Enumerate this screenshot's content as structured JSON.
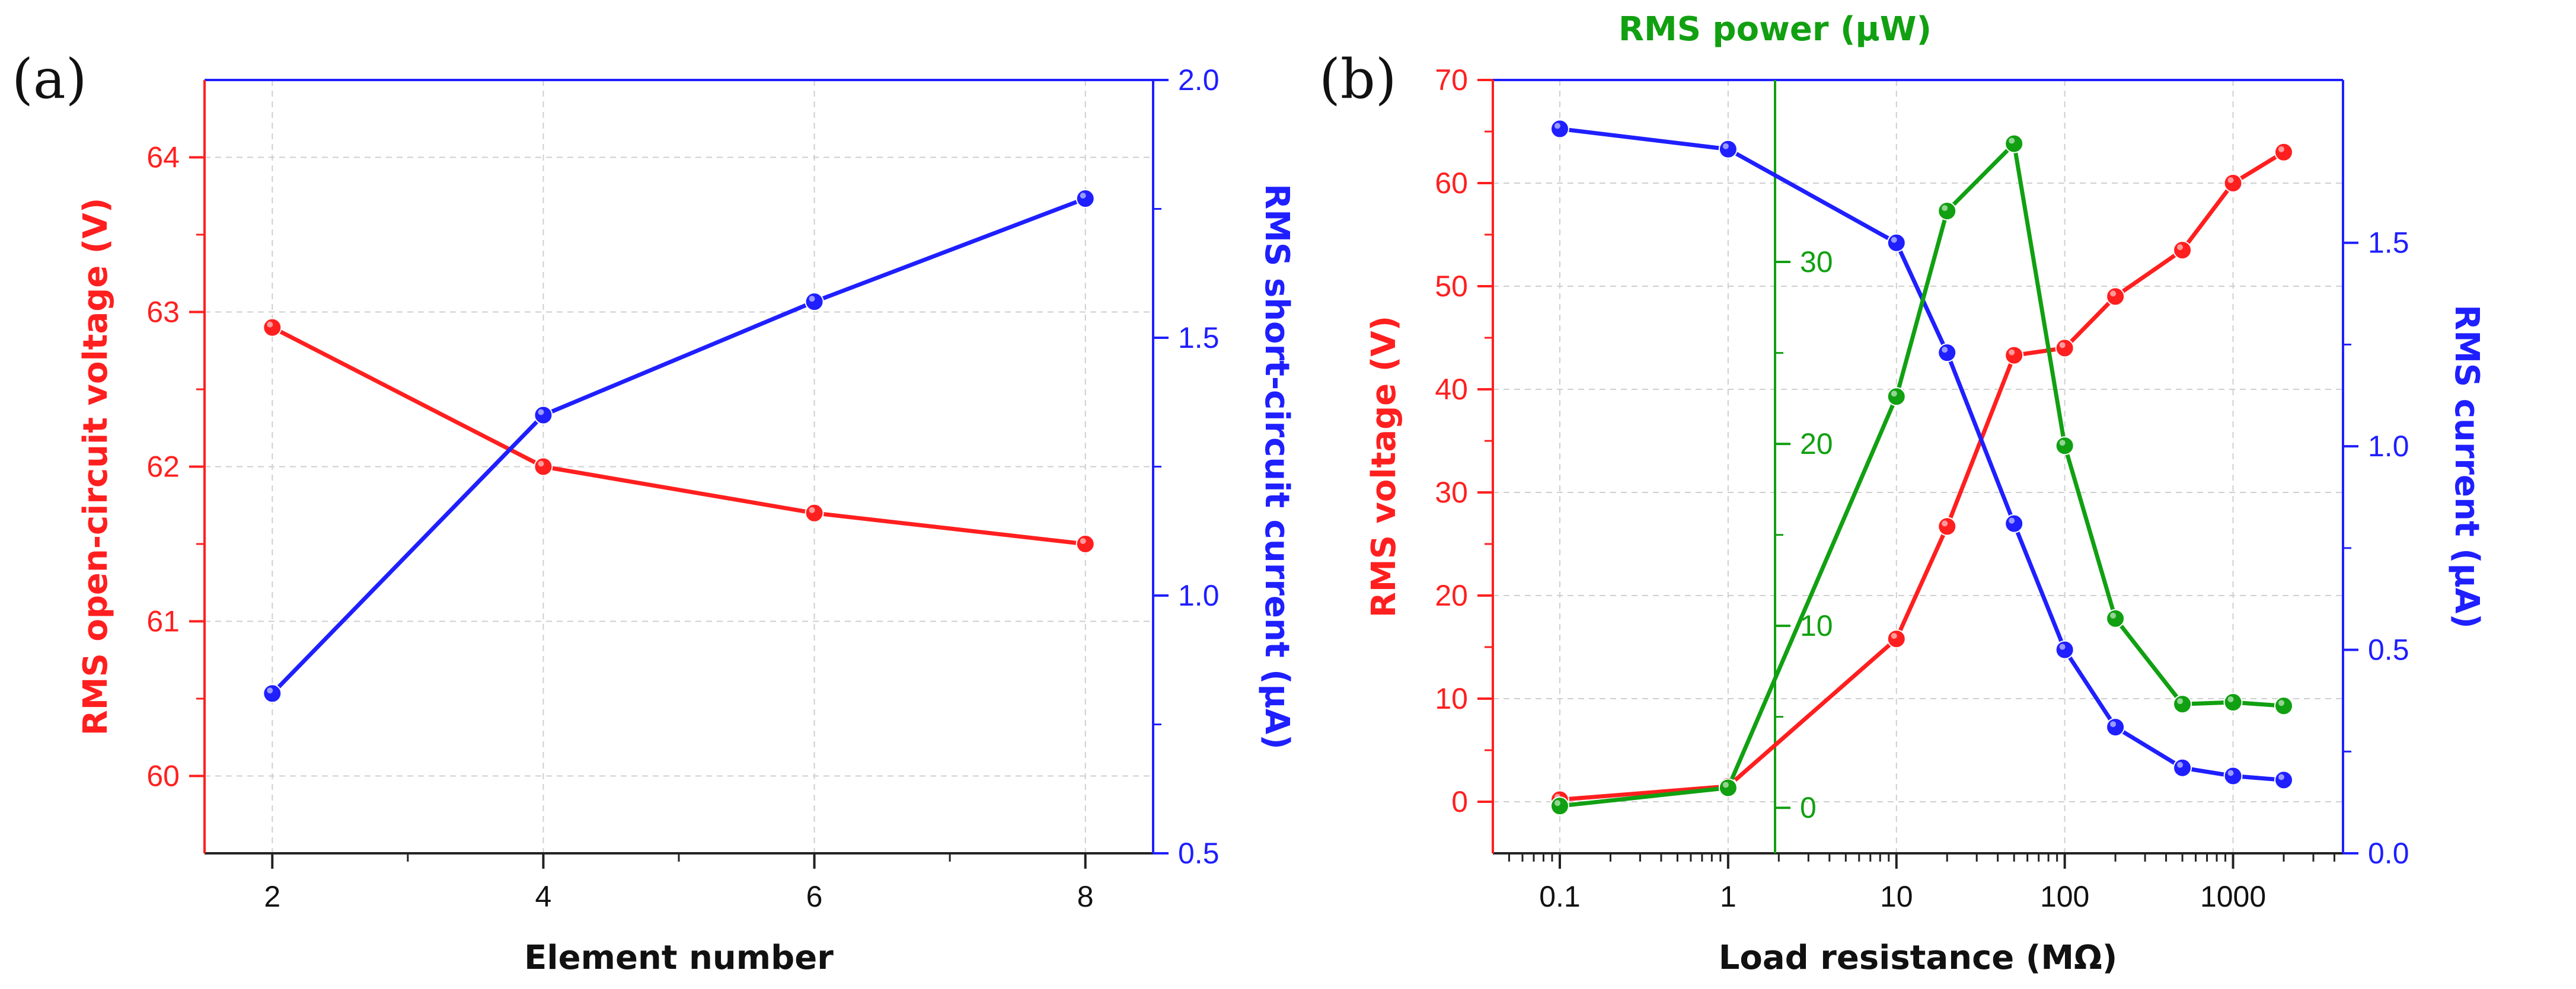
{
  "colors": {
    "red": "#ff1f1f",
    "blue": "#1f1fff",
    "green": "#11a011",
    "frame": "#222222",
    "grid": "#cfcfcf",
    "text": "#111111"
  },
  "chart_data": [
    {
      "id": "a",
      "panel_label": "(a)",
      "type": "line",
      "title": "",
      "xlabel": "Element number",
      "x": [
        2,
        4,
        6,
        8
      ],
      "xlim": [
        1.5,
        8.5
      ],
      "xticks": [
        2,
        4,
        6,
        8
      ],
      "xtick_labels": [
        "2",
        "4",
        "6",
        "8"
      ],
      "grid": true,
      "axes": [
        {
          "key": "left",
          "side": "left",
          "label": "RMS open-circuit voltage (V)",
          "color": "red",
          "ylim": [
            59.5,
            64.5
          ],
          "ticks": [
            60,
            61,
            62,
            63,
            64
          ],
          "tick_labels": [
            "60",
            "61",
            "62",
            "63",
            "64"
          ]
        },
        {
          "key": "right",
          "side": "right",
          "label": "RMS short-circuit current (μA)",
          "color": "blue",
          "ylim": [
            0.5,
            2.0
          ],
          "ticks": [
            0.5,
            1.0,
            1.5,
            2.0
          ],
          "tick_labels": [
            "0.5",
            "1.0",
            "1.5",
            "2.0"
          ]
        }
      ],
      "series": [
        {
          "name": "RMS open-circuit voltage",
          "axis": "left",
          "color": "red",
          "values": [
            62.9,
            62.0,
            61.7,
            61.5
          ]
        },
        {
          "name": "RMS short-circuit current",
          "axis": "right",
          "color": "blue",
          "values": [
            0.81,
            1.35,
            1.57,
            1.77
          ]
        }
      ]
    },
    {
      "id": "b",
      "panel_label": "(b)",
      "type": "line",
      "title": "",
      "xlabel": "Load resistance (MΩ)",
      "xscale": "log",
      "x": [
        0.1,
        1,
        10,
        20,
        50,
        100,
        200,
        500,
        1000,
        2000
      ],
      "xlim": [
        0.04,
        4500
      ],
      "xticks": [
        0.1,
        1,
        10,
        100,
        1000
      ],
      "xtick_labels": [
        "0.1",
        "1",
        "10",
        "100",
        "1000"
      ],
      "grid": true,
      "axes": [
        {
          "key": "left",
          "side": "left",
          "label": "RMS voltage (V)",
          "color": "red",
          "ylim": [
            -5,
            70
          ],
          "ticks": [
            0,
            10,
            20,
            30,
            40,
            50,
            60,
            70
          ],
          "tick_labels": [
            "0",
            "10",
            "20",
            "30",
            "40",
            "50",
            "60",
            "70"
          ]
        },
        {
          "key": "right",
          "side": "right",
          "label": "RMS current (μA)",
          "color": "blue",
          "ylim": [
            0,
            1.9
          ],
          "ticks": [
            0.0,
            0.5,
            1.0,
            1.5
          ],
          "tick_labels": [
            "0.0",
            "0.5",
            "1.0",
            "1.5"
          ]
        },
        {
          "key": "inner",
          "side": "inner",
          "at_x": 1.9,
          "label": "RMS power (μW)",
          "color": "green",
          "ylim": [
            -2.5,
            40
          ],
          "ticks": [
            0,
            10,
            20,
            30
          ],
          "tick_labels": [
            "0",
            "10",
            "20",
            "30"
          ]
        }
      ],
      "series": [
        {
          "name": "RMS voltage",
          "axis": "left",
          "color": "red",
          "values": [
            0.2,
            1.5,
            15.8,
            26.7,
            43.3,
            44.0,
            49.0,
            53.5,
            60.0,
            63.0
          ]
        },
        {
          "name": "RMS current",
          "axis": "right",
          "color": "blue",
          "values": [
            1.78,
            1.73,
            1.5,
            1.23,
            0.81,
            0.5,
            0.31,
            0.21,
            0.19,
            0.18
          ]
        },
        {
          "name": "RMS power",
          "axis": "inner",
          "color": "green",
          "values": [
            0.1,
            1.1,
            22.6,
            32.8,
            36.5,
            19.9,
            10.4,
            5.7,
            5.8,
            5.6
          ]
        }
      ]
    }
  ]
}
